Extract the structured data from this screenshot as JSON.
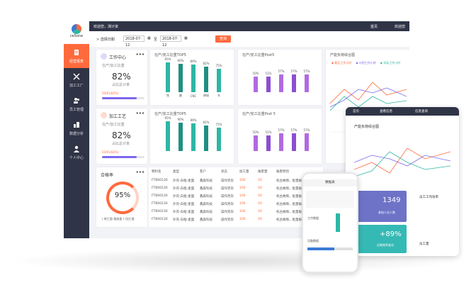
{
  "app": {
    "name": "ceSone",
    "welcome": "欢迎您，测计资",
    "home_label": "首页",
    "user_label": "欢迎您"
  },
  "sidebar": {
    "items": [
      {
        "label": "经营报表",
        "icon": "document-icon"
      },
      {
        "label": "加工工厂",
        "icon": "tools-icon"
      },
      {
        "label": "员工管理",
        "icon": "people-icon"
      },
      {
        "label": "数据分析",
        "icon": "building-icon"
      },
      {
        "label": "个人中心",
        "icon": "person-icon"
      }
    ]
  },
  "filter": {
    "label": "> 选择日期",
    "start": "2018-07-12",
    "end": "2018-07-12",
    "to": "至",
    "query": "查询"
  },
  "cards": {
    "work_center": {
      "title": "工作中心",
      "desc": "在产/加工比重",
      "percent": "82%",
      "subtitle": "占比总计率",
      "value_text": "50/61(82%)",
      "progress": 0.82
    },
    "processing": {
      "title": "加工工艺",
      "desc": "在产/加工比重",
      "percent": "82%",
      "subtitle": "占比总计率",
      "value_text": "50/61(82%)",
      "progress": 0.82
    },
    "rate": {
      "title": "合格率",
      "percent": "95%",
      "footer": "( 制工量-报废量 ) /加工量"
    }
  },
  "chart_data": [
    {
      "type": "bar",
      "title": "在产/完工比重TOP5",
      "categories": [
        "铣",
        "磨",
        "CNC",
        "焊接",
        "车"
      ],
      "values": [
        95,
        90,
        89,
        82,
        75
      ]
    },
    {
      "type": "bar",
      "title": "在产/完工比重Post5",
      "categories": [
        "",
        "",
        "",
        "",
        ""
      ],
      "values": [
        50,
        51,
        57,
        57,
        57
      ]
    },
    {
      "type": "bar",
      "title": "在产/完工比重TOP5",
      "categories": [
        "",
        "",
        "",
        "",
        ""
      ],
      "values": [
        95,
        90,
        89,
        82,
        75
      ]
    },
    {
      "type": "bar",
      "title": "在产/完工比重Post 5",
      "categories": [
        "",
        "",
        "",
        "",
        ""
      ],
      "values": [
        50,
        51,
        57,
        57,
        57
      ]
    }
  ],
  "line_chart": {
    "title": "产能负荷综合图",
    "series": [
      {
        "name": "截至工作小时",
        "color": "#ff6a3d"
      },
      {
        "name": "计划工作小时",
        "color": "#7b68ee"
      },
      {
        "name": "实际工作小时",
        "color": "#2db7a4"
      }
    ]
  },
  "table": {
    "headers": [
      "物料名",
      "类型",
      "客户",
      "状态",
      "加工量",
      "报废量",
      "报废原因"
    ],
    "rows": [
      [
        "FTB00130",
        "外壳-白框-麦面",
        "鑫森科技",
        "操作完毕",
        "100",
        "50",
        "机台故障，批量报废"
      ],
      [
        "FTB00130",
        "外壳-白框-麦面",
        "鑫森科技",
        "操作完毕",
        "100",
        "50",
        "机台故障，批量报废"
      ],
      [
        "FTB00130",
        "外壳-白框-麦面",
        "鑫森科技",
        "操作完毕",
        "100",
        "50",
        "机台故障，批量报废"
      ],
      [
        "FTB00130",
        "外壳-白框-麦面",
        "鑫森科技",
        "操作完毕",
        "100",
        "50",
        "机台故障，批量报废"
      ],
      [
        "FTB00130",
        "外壳-白框-麦面",
        "鑫森科技",
        "操作完毕",
        "100",
        "50",
        "机台故障，批量报废"
      ],
      [
        "FTB00130",
        "外壳-白框-麦面",
        "鑫森科技",
        "操作完毕",
        "100",
        "50",
        "机台故障，批量报废"
      ]
    ]
  },
  "tablet": {
    "tabs": [
      "首页",
      "查看信息",
      "信息查询"
    ],
    "title": "产能负荷综合图",
    "tile1": {
      "value": "1349",
      "label": "参加人员人数"
    },
    "tile2": {
      "value": "+89%",
      "label": "近期效率变化"
    },
    "side1": "员工工作效率",
    "side2": "员工量"
  },
  "phone": {
    "title": "数据表",
    "labels": [
      "工作数据",
      "设备数据"
    ]
  }
}
